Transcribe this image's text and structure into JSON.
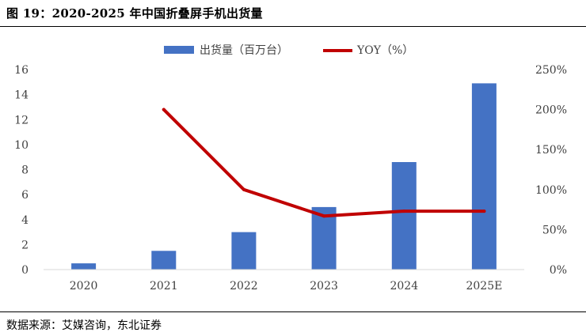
{
  "figure": {
    "title": "图 19：2020-2025 年中国折叠屏手机出货量",
    "source": "数据来源：艾媒咨询，东北证券"
  },
  "colors": {
    "bar": "#4472C4",
    "line": "#C00000",
    "axis_text": "#404040",
    "axis_line": "#D9D9D9"
  },
  "chart_data": {
    "type": "bar",
    "title": "",
    "categories": [
      "2020",
      "2021",
      "2022",
      "2023",
      "2024",
      "2025E"
    ],
    "series": [
      {
        "name": "出货量（百万台）",
        "type": "bar",
        "axis": "left",
        "values": [
          0.5,
          1.5,
          3.0,
          5.0,
          8.6,
          14.9
        ]
      },
      {
        "name": "YOY（%）",
        "type": "line",
        "axis": "right",
        "values": [
          null,
          200,
          100,
          67,
          73,
          73
        ]
      }
    ],
    "y_left": {
      "range": [
        0,
        16
      ],
      "ticks": [
        "0",
        "2",
        "4",
        "6",
        "8",
        "10",
        "12",
        "14",
        "16"
      ]
    },
    "y_right": {
      "range": [
        0,
        250
      ],
      "ticks": [
        "0%",
        "50%",
        "100%",
        "150%",
        "200%",
        "250%"
      ]
    },
    "legend_position": "top-center",
    "grid": false
  }
}
